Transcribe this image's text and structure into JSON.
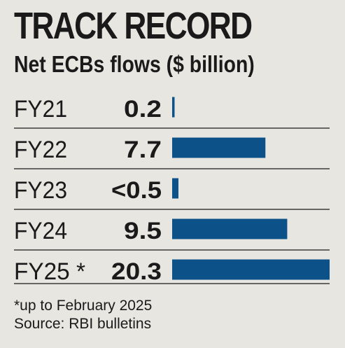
{
  "chart_data": {
    "type": "bar",
    "orientation": "horizontal",
    "title": "TRACK RECORD",
    "subtitle": "Net ECBs flows ($ billion)",
    "categories": [
      "FY21",
      "FY22",
      "FY23",
      "FY24",
      "FY25 *"
    ],
    "value_labels": [
      "0.2",
      "7.7",
      "<0.5",
      "9.5",
      "20.3"
    ],
    "values": [
      0.2,
      7.7,
      0.5,
      9.5,
      20.3
    ],
    "xlim": [
      0,
      13
    ],
    "axis_break_after": 9.8,
    "grid": false,
    "legend": "none",
    "notes": [
      "*up to February 2025",
      "Source: RBI bulletins"
    ],
    "colors": {
      "bar": "#0d5189",
      "background": "#e8e6e1",
      "separator": "#1a1a1a",
      "text": "#1a1a1a"
    }
  }
}
